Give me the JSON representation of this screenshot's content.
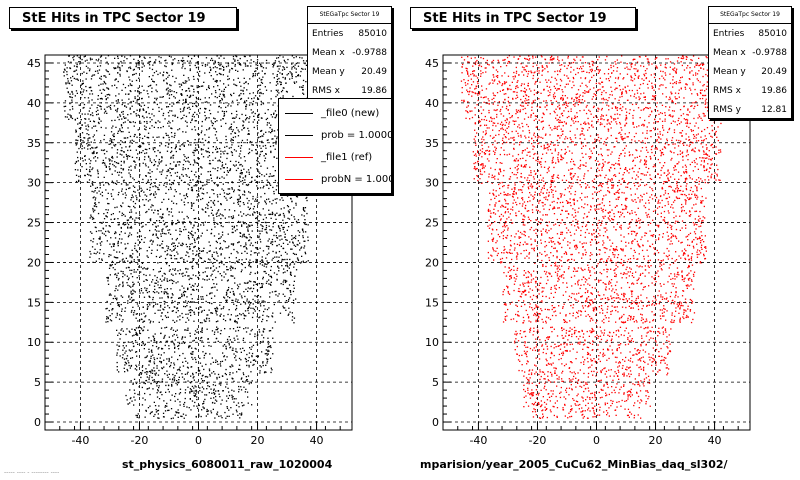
{
  "pads": [
    {
      "title": "StE Hits in TPC Sector 19",
      "stats": {
        "name": "StEGaTpc Sector 19",
        "rows": [
          {
            "label": "Entries",
            "value": "85010"
          },
          {
            "label": "Mean x",
            "value": "-0.9788"
          },
          {
            "label": "Mean y",
            "value": "20.49"
          },
          {
            "label": "RMS x",
            "value": "19.86"
          }
        ]
      },
      "legend": [
        {
          "label": "_file0 (new)",
          "color": "#000000"
        },
        {
          "label": "prob = 1.000000",
          "color": "#000000"
        },
        {
          "label": "_file1 (ref)",
          "color": "#ff0000"
        },
        {
          "label": "probN = 1.000000",
          "color": "#ff0000"
        }
      ],
      "file_label": "st_physics_6080011_raw_1020004",
      "marker_color": "#000000"
    },
    {
      "title": "StE Hits in TPC Sector 19",
      "stats": {
        "name": "StEGaTpc Sector 19",
        "rows": [
          {
            "label": "Entries",
            "value": "85010"
          },
          {
            "label": "Mean x",
            "value": "-0.9788"
          },
          {
            "label": "Mean y",
            "value": "20.49"
          },
          {
            "label": "RMS x",
            "value": "19.86"
          },
          {
            "label": "RMS y",
            "value": "12.81"
          }
        ]
      },
      "file_label": "mparision/year_2005_CuCu62_MinBias_daq_sl302/",
      "marker_color": "#ff0000"
    }
  ],
  "bottom_left_text": "----- ---- - -------- ----",
  "chart_data": [
    {
      "type": "scatter",
      "title": "StE Hits in TPC Sector 19",
      "xlim": [
        -52,
        52
      ],
      "ylim": [
        -1,
        46
      ],
      "x_ticks": [
        -40,
        -20,
        0,
        20,
        40
      ],
      "y_ticks": [
        0,
        5,
        10,
        15,
        20,
        25,
        30,
        35,
        40,
        45
      ],
      "grid": true,
      "legend_position": "top-right",
      "series": [
        {
          "name": "_file0 (new)",
          "color": "#000000"
        }
      ],
      "entries": 85010,
      "mean_x": -0.9788,
      "mean_y": 20.49,
      "rms_x": 19.86,
      "rows": [
        {
          "y_min": 0.5,
          "y_max": 2,
          "x_min": -22,
          "x_max": 15
        },
        {
          "y_min": 2,
          "y_max": 6,
          "x_min": -25,
          "x_max": 18
        },
        {
          "y_min": 6,
          "y_max": 12,
          "x_min": -28,
          "x_max": 25
        },
        {
          "y_min": 12.5,
          "y_max": 20,
          "x_min": -32,
          "x_max": 33
        },
        {
          "y_min": 20,
          "y_max": 30,
          "x_min": -37,
          "x_max": 37
        },
        {
          "y_min": 30,
          "y_max": 38,
          "x_min": -42,
          "x_max": 42
        },
        {
          "y_min": 38,
          "y_max": 46,
          "x_min": -46,
          "x_max": 45
        }
      ]
    },
    {
      "type": "scatter",
      "title": "StE Hits in TPC Sector 19",
      "xlim": [
        -52,
        52
      ],
      "ylim": [
        -1,
        46
      ],
      "x_ticks": [
        -40,
        -20,
        0,
        20,
        40
      ],
      "y_ticks": [
        0,
        5,
        10,
        15,
        20,
        25,
        30,
        35,
        40,
        45
      ],
      "grid": true,
      "series": [
        {
          "name": "_file1 (ref)",
          "color": "#ff0000"
        }
      ],
      "entries": 85010,
      "mean_x": -0.9788,
      "mean_y": 20.49,
      "rms_x": 19.86,
      "rms_y": 12.81,
      "rows": [
        {
          "y_min": 0.5,
          "y_max": 2,
          "x_min": -22,
          "x_max": 15
        },
        {
          "y_min": 2,
          "y_max": 6,
          "x_min": -25,
          "x_max": 18
        },
        {
          "y_min": 6,
          "y_max": 12,
          "x_min": -28,
          "x_max": 25
        },
        {
          "y_min": 12.5,
          "y_max": 20,
          "x_min": -32,
          "x_max": 33
        },
        {
          "y_min": 20,
          "y_max": 30,
          "x_min": -37,
          "x_max": 37
        },
        {
          "y_min": 30,
          "y_max": 38,
          "x_min": -42,
          "x_max": 42
        },
        {
          "y_min": 38,
          "y_max": 46,
          "x_min": -46,
          "x_max": 45
        }
      ]
    }
  ]
}
